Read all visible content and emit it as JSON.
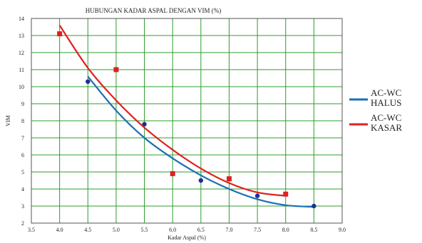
{
  "chart_data": {
    "type": "scatter",
    "title": "HUBUNGAN KADAR ASPAL DENGAN VIM (%)",
    "xlabel": "Kadar Aspal (%)",
    "ylabel": "VIM",
    "xlim": [
      3.5,
      9.0
    ],
    "ylim": [
      2,
      14
    ],
    "x_ticks": [
      "3.5",
      "4.0",
      "4.5",
      "5.0",
      "5.5",
      "6.0",
      "6.5",
      "7.0",
      "7.5",
      "8.0",
      "8.5",
      "9.0"
    ],
    "y_ticks": [
      "2",
      "3",
      "4",
      "5",
      "6",
      "7",
      "8",
      "9",
      "10",
      "11",
      "12",
      "13",
      "14"
    ],
    "grid": true,
    "grid_color": "#2e9c2e",
    "legend_position": "right",
    "series": [
      {
        "name": "AC-WC HALUS",
        "name_lines": [
          "AC-WC",
          "HALUS"
        ],
        "color": "#1a6fb5",
        "marker_color": "#1f2f8f",
        "points": [
          [
            4.5,
            10.3
          ],
          [
            5.5,
            7.8
          ],
          [
            6.5,
            4.5
          ],
          [
            7.5,
            3.6
          ],
          [
            8.5,
            3.0
          ]
        ],
        "trend": [
          [
            4.5,
            10.6
          ],
          [
            5.0,
            8.6
          ],
          [
            5.5,
            7.0
          ],
          [
            6.0,
            5.8
          ],
          [
            6.5,
            4.8
          ],
          [
            7.0,
            4.0
          ],
          [
            7.5,
            3.4
          ],
          [
            8.0,
            3.05
          ],
          [
            8.5,
            2.95
          ]
        ]
      },
      {
        "name": "AC-WC KASAR",
        "name_lines": [
          "AC-WC",
          "KASAR"
        ],
        "color": "#e02020",
        "marker_color": "#e02020",
        "points": [
          [
            4.0,
            13.1
          ],
          [
            5.0,
            11.0
          ],
          [
            6.0,
            4.9
          ],
          [
            7.0,
            4.6
          ],
          [
            8.0,
            3.7
          ]
        ],
        "trend": [
          [
            4.0,
            13.6
          ],
          [
            4.5,
            11.1
          ],
          [
            5.0,
            9.2
          ],
          [
            5.5,
            7.6
          ],
          [
            6.0,
            6.3
          ],
          [
            6.5,
            5.2
          ],
          [
            7.0,
            4.35
          ],
          [
            7.5,
            3.8
          ],
          [
            8.0,
            3.6
          ]
        ]
      }
    ]
  }
}
